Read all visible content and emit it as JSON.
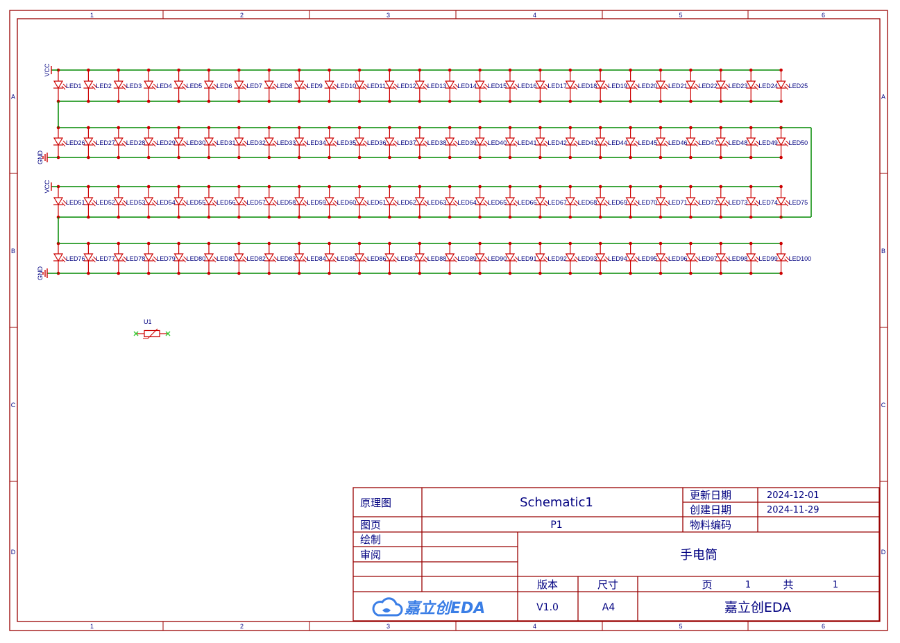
{
  "sheet": {
    "col_labels": [
      "1",
      "2",
      "3",
      "4",
      "5",
      "6"
    ],
    "row_labels": [
      "A",
      "B",
      "C",
      "D"
    ],
    "colors": {
      "border": "#990000",
      "wire": "#008800",
      "component": "#cc0000",
      "text": "#000080",
      "noconnect": "#33cc33"
    }
  },
  "schematic": {
    "power_vcc": "VCC",
    "power_gnd": "GND",
    "rows": [
      {
        "leds": [
          "LED1",
          "LED2",
          "LED3",
          "LED4",
          "LED5",
          "LED6",
          "LED7",
          "LED8",
          "LED9",
          "LED10",
          "LED11",
          "LED12",
          "LED13",
          "LED14",
          "LED15",
          "LED16",
          "LED17",
          "LED18",
          "LED19",
          "LED20",
          "LED21",
          "LED22",
          "LED23",
          "LED24",
          "LED25"
        ]
      },
      {
        "leds": [
          "LED26",
          "LED27",
          "LED28",
          "LED29",
          "LED30",
          "LED31",
          "LED32",
          "LED33",
          "LED34",
          "LED35",
          "LED36",
          "LED37",
          "LED38",
          "LED39",
          "LED40",
          "LED41",
          "LED42",
          "LED43",
          "LED44",
          "LED45",
          "LED46",
          "LED47",
          "LED48",
          "LED49",
          "LED50"
        ]
      },
      {
        "leds": [
          "LED51",
          "LED52",
          "LED53",
          "LED54",
          "LED55",
          "LED56",
          "LED57",
          "LED58",
          "LED59",
          "LED60",
          "LED61",
          "LED62",
          "LED63",
          "LED64",
          "LED65",
          "LED66",
          "LED67",
          "LED68",
          "LED69",
          "LED70",
          "LED71",
          "LED72",
          "LED73",
          "LED74",
          "LED75"
        ]
      },
      {
        "leds": [
          "LED76",
          "LED77",
          "LED78",
          "LED79",
          "LED80",
          "LED81",
          "LED82",
          "LED83",
          "LED84",
          "LED85",
          "LED86",
          "LED87",
          "LED88",
          "LED89",
          "LED90",
          "LED91",
          "LED92",
          "LED93",
          "LED94",
          "LED95",
          "LED96",
          "LED97",
          "LED98",
          "LED99",
          "LED100"
        ]
      }
    ],
    "extra_part": {
      "designator": "U1",
      "symbol": "varistor-icon"
    }
  },
  "title_block": {
    "schematic_label": "原理图",
    "schematic_name": "Schematic1",
    "page_label": "图页",
    "page_value": "P1",
    "updated_label": "更新日期",
    "updated_value": "2024-12-01",
    "created_label": "创建日期",
    "created_value": "2024-11-29",
    "part_no_label": "物料编码",
    "part_no_value": "",
    "drawn_label": "绘制",
    "drawn_value": "",
    "review_label": "审阅",
    "review_value": "",
    "project_title": "手电筒",
    "version_label": "版本",
    "version_value": "V1.0",
    "size_label": "尺寸",
    "size_value": "A4",
    "sheet_label": "页",
    "sheet_value": "1",
    "total_label": "共",
    "total_value": "1",
    "logo_text": "嘉立创EDA",
    "company": "嘉立创EDA"
  }
}
